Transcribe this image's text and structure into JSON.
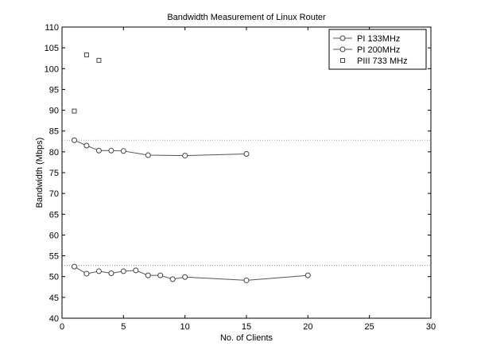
{
  "chart_data": {
    "type": "line",
    "title": "Bandwidth Measurement of Linux Router",
    "xlabel": "No. of Clients",
    "ylabel": "Bandwidth (Mbps)",
    "xlim": [
      0,
      30
    ],
    "ylim": [
      40,
      110
    ],
    "xticks": [
      0,
      5,
      10,
      15,
      20,
      25,
      30
    ],
    "yticks": [
      40,
      45,
      50,
      55,
      60,
      65,
      70,
      75,
      80,
      85,
      90,
      95,
      100,
      105,
      110
    ],
    "grid": false,
    "legend_position": "top-right",
    "reference_lines": [
      82.8,
      52.7
    ],
    "series": [
      {
        "name": "PI 133MHz",
        "marker": "circle",
        "line": true,
        "x": [
          1,
          2,
          3,
          4,
          5,
          6,
          7,
          8,
          9,
          10,
          15,
          20
        ],
        "y": [
          52.4,
          50.7,
          51.3,
          50.8,
          51.3,
          51.5,
          50.3,
          50.3,
          49.4,
          49.9,
          49.1,
          50.3
        ]
      },
      {
        "name": "PI 200MHz",
        "marker": "circle",
        "line": true,
        "x": [
          1,
          2,
          3,
          4,
          5,
          7,
          10,
          15
        ],
        "y": [
          82.8,
          81.5,
          80.3,
          80.3,
          80.2,
          79.2,
          79.1,
          79.5
        ]
      },
      {
        "name": "PIII 733 MHz",
        "marker": "square",
        "line": false,
        "x": [
          1,
          2,
          3
        ],
        "y": [
          89.8,
          103.3,
          102.0
        ]
      }
    ]
  }
}
